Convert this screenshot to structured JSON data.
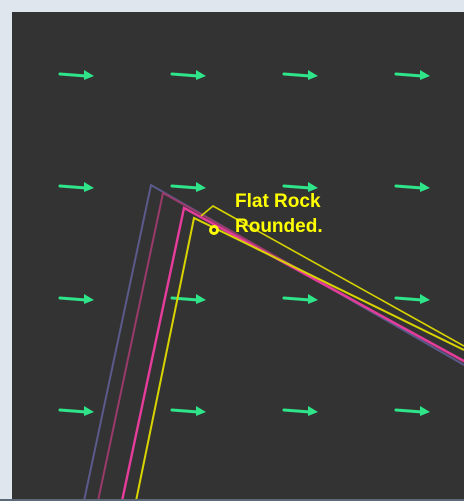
{
  "map": {
    "label_line1": "Flat Rock",
    "label_line2": "Rounded.",
    "label_color": "#ffff00",
    "background_color": "#333333",
    "frame_color": "#dfe6ee",
    "arrow_color": "#2ee58a",
    "arrow_icon": "flow-arrow-icon",
    "marker_icon": "location-marker-icon",
    "polylines": [
      {
        "name": "contour-line-purple",
        "color": "#5a5a8c"
      },
      {
        "name": "contour-line-maroon",
        "color": "#9a3a6a"
      },
      {
        "name": "contour-line-magenta",
        "color": "#e63c9c"
      },
      {
        "name": "contour-line-yellow",
        "color": "#d8d400"
      }
    ]
  }
}
